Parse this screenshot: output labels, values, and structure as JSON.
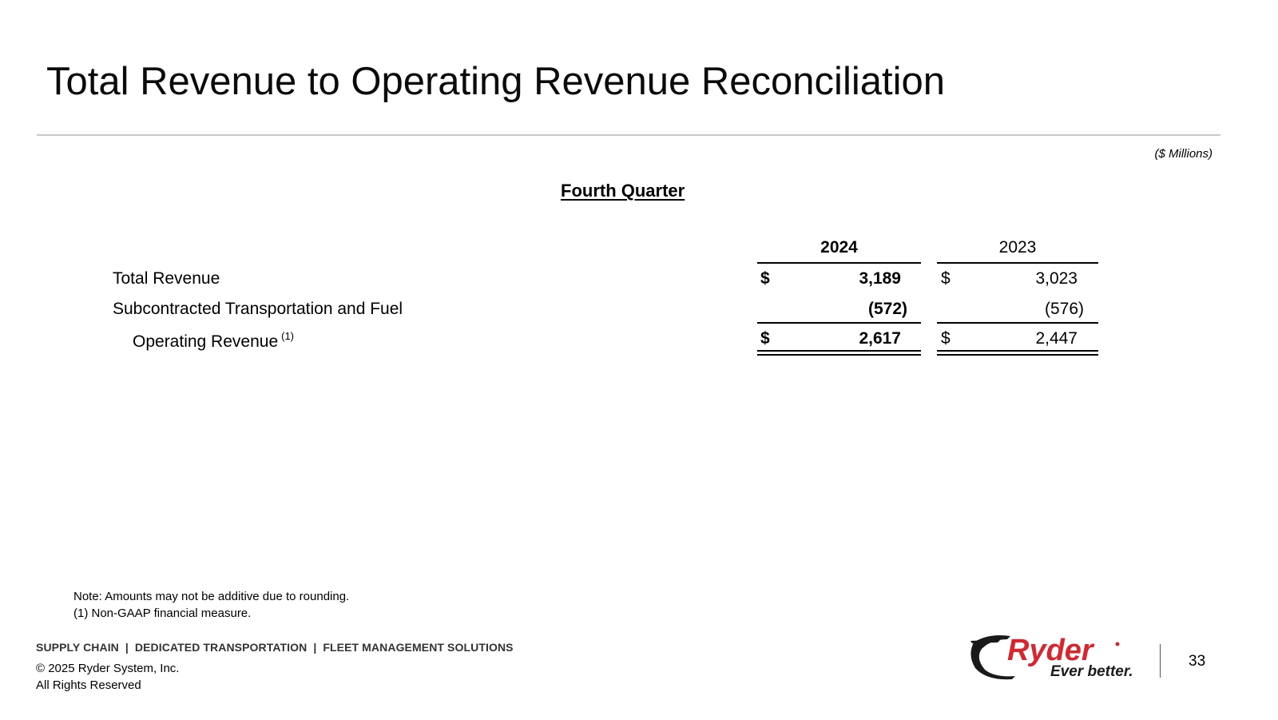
{
  "title": "Total Revenue to Operating Revenue Reconciliation",
  "units": "($ Millions)",
  "section_heading": "Fourth Quarter",
  "table": {
    "years": [
      "2024",
      "2023"
    ],
    "rows": [
      {
        "label": "Total Revenue",
        "currency_2024": "$",
        "value_2024": "3,189",
        "currency_2023": "$",
        "value_2023": "3,023"
      },
      {
        "label": "Subcontracted Transportation and Fuel",
        "currency_2024": "",
        "value_2024": "(572)",
        "currency_2023": "",
        "value_2023": "(576)"
      },
      {
        "label": "Operating Revenue",
        "footnote_ref": "(1)",
        "currency_2024": "$",
        "value_2024": "2,617",
        "currency_2023": "$",
        "value_2023": "2,447"
      }
    ]
  },
  "notes": [
    "Note: Amounts may not be additive due to rounding.",
    "(1)  Non-GAAP financial measure."
  ],
  "footer": {
    "tagline": "SUPPLY CHAIN  |  DEDICATED TRANSPORTATION  |  FLEET MANAGEMENT SOLUTIONS",
    "copyright": "© 2025 Ryder System, Inc.",
    "rights": "All Rights Reserved",
    "logo_text": "Ryder",
    "logo_slogan": "Ever better.",
    "page_number": "33"
  },
  "colors": {
    "logo_red": "#d8262f",
    "logo_dark": "#1a1a1a",
    "rule_gray": "#c8c8c8"
  }
}
